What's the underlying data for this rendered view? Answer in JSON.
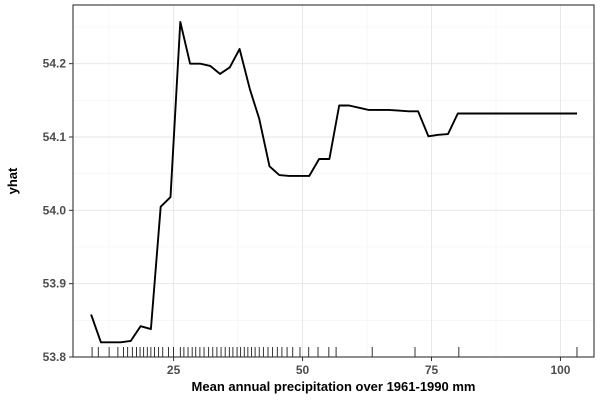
{
  "chart_data": {
    "type": "line",
    "xlabel": "Mean annual precipitation over 1961-1990 mm",
    "ylabel": "yhat",
    "xlim": [
      5.5,
      106.5
    ],
    "ylim": [
      53.8,
      54.28
    ],
    "x_ticks": [
      25,
      50,
      75,
      100
    ],
    "y_ticks": [
      53.8,
      53.9,
      54.0,
      54.1,
      54.2
    ],
    "x_tick_labels": [
      "25",
      "50",
      "75",
      "100"
    ],
    "y_tick_labels": [
      "53.8",
      "53.9",
      "54.0",
      "54.1",
      "54.2"
    ],
    "grid": true,
    "series": [
      {
        "color": "#000000",
        "x": [
          9.0,
          10.9,
          12.8,
          14.7,
          16.7,
          18.6,
          20.6,
          22.5,
          24.4,
          26.3,
          28.2,
          30.2,
          32.1,
          34.0,
          35.9,
          37.8,
          39.8,
          41.6,
          43.6,
          45.5,
          47.4,
          49.3,
          51.3,
          53.2,
          55.2,
          57.1,
          59.0,
          60.9,
          62.8,
          64.8,
          66.7,
          68.6,
          70.6,
          72.4,
          74.4,
          76.3,
          78.2,
          80.1,
          82.1,
          84.0,
          85.9,
          87.8,
          89.7,
          91.7,
          93.6,
          95.5,
          97.5,
          99.3,
          101.3,
          103.2
        ],
        "values": [
          53.858,
          53.82,
          53.82,
          53.82,
          53.822,
          53.842,
          53.838,
          54.005,
          54.018,
          54.257,
          54.2,
          54.2,
          54.197,
          54.186,
          54.195,
          54.22,
          54.165,
          54.125,
          54.06,
          54.048,
          54.047,
          54.047,
          54.047,
          54.07,
          54.07,
          54.143,
          54.143,
          54.14,
          54.137,
          54.137,
          54.137,
          54.136,
          54.135,
          54.135,
          54.101,
          54.103,
          54.104,
          54.132,
          54.132,
          54.132,
          54.132,
          54.132,
          54.132,
          54.132,
          54.132,
          54.132,
          54.132,
          54.132,
          54.132,
          54.132
        ]
      }
    ],
    "rug": [
      9.2,
      10.4,
      12.5,
      14.2,
      15.3,
      16.1,
      17.0,
      17.8,
      18.5,
      19.2,
      19.9,
      20.6,
      21.3,
      22.1,
      22.9,
      24.0,
      25.0,
      26.3,
      27.0,
      27.8,
      28.6,
      29.3,
      30.1,
      30.9,
      31.8,
      32.6,
      33.4,
      34.2,
      35.0,
      35.8,
      36.5,
      37.3,
      38.0,
      38.7,
      39.4,
      40.1,
      40.8,
      41.6,
      42.4,
      43.3,
      44.2,
      45.1,
      46.0,
      47.0,
      48.1,
      49.5,
      51.2,
      53.0,
      55.1,
      56.5,
      63.5,
      71.8,
      80.3,
      103.2
    ]
  }
}
